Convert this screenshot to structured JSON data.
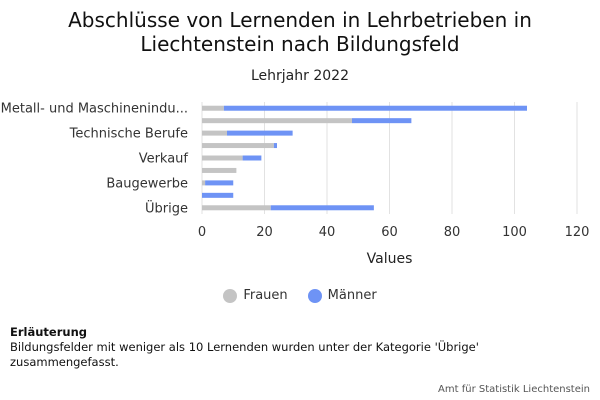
{
  "chart_data": {
    "type": "bar",
    "orientation": "horizontal",
    "stacked": true,
    "title": "Abschlüsse von Lernenden in Lehrbetrieben in Liechtenstein nach Bildungsfeld",
    "subtitle": "Lehrjahr 2022",
    "xlabel": "Values",
    "xlim": [
      0,
      120
    ],
    "xticks": [
      0,
      20,
      40,
      60,
      80,
      100,
      120
    ],
    "grid": true,
    "legend_position": "bottom",
    "categories": [
      "Metall- und Maschinenindu...",
      "",
      "Technische Berufe",
      "",
      "Verkauf",
      "",
      "Baugewerbe",
      "",
      "Übrige"
    ],
    "series": [
      {
        "name": "Frauen",
        "color": "#c4c4c4",
        "values": [
          7,
          48,
          8,
          23,
          13,
          11,
          1,
          0,
          22
        ]
      },
      {
        "name": "Männer",
        "color": "#6e93f5",
        "values": [
          97,
          19,
          21,
          1,
          6,
          0,
          9,
          10,
          33
        ]
      }
    ]
  },
  "note": {
    "title": "Erläuterung",
    "text": "Bildungsfelder mit weniger als 10 Lernenden wurden unter der Kategorie 'Übrige' zusammengefasst."
  },
  "source": "Amt für Statistik Liechtenstein"
}
